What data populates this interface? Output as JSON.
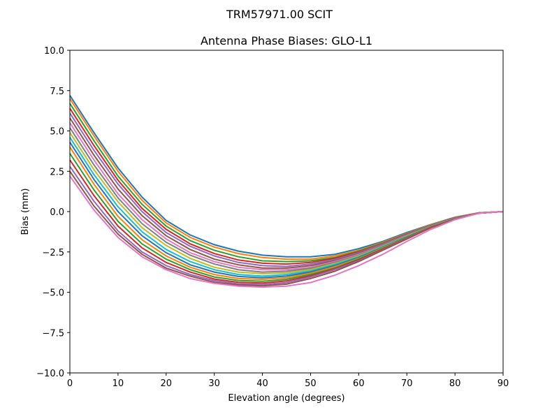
{
  "figure": {
    "suptitle": "TRM57971.00      SCIT"
  },
  "chart_data": {
    "type": "line",
    "title": "Antenna Phase Biases: GLO-L1",
    "xlabel": "Elevation angle (degrees)",
    "ylabel": "Bias (mm)",
    "xlim": [
      0,
      90
    ],
    "ylim": [
      -10,
      10
    ],
    "x": [
      0,
      5,
      10,
      15,
      20,
      25,
      30,
      35,
      40,
      45,
      50,
      55,
      60,
      65,
      70,
      75,
      80,
      85,
      90
    ],
    "x_tick_labels": [
      "0",
      "10",
      "20",
      "30",
      "40",
      "50",
      "60",
      "70",
      "80",
      "90"
    ],
    "y_tick_labels": [
      "10.0",
      "7.5",
      "5.0",
      "2.5",
      "0.0",
      "−2.5",
      "−5.0",
      "−7.5",
      "−10.0"
    ],
    "grid": false,
    "legend": "none",
    "series_note_colors": [
      "#1f77b4",
      "#ff7f0e",
      "#2ca02c",
      "#d62728",
      "#9467bd",
      "#8c564b",
      "#e377c2",
      "#7f7f7f",
      "#bcbd22",
      "#17becf"
    ],
    "series": [
      {
        "values": [
          7.2,
          4.9,
          2.7,
          0.9,
          -0.55,
          -1.45,
          -2.05,
          -2.45,
          -2.7,
          -2.8,
          -2.8,
          -2.65,
          -2.3,
          -1.85,
          -1.3,
          -0.8,
          -0.35,
          -0.08,
          0.0
        ]
      },
      {
        "values": [
          7.0,
          4.7,
          2.5,
          0.7,
          -0.7,
          -1.6,
          -2.2,
          -2.6,
          -2.85,
          -2.95,
          -2.95,
          -2.75,
          -2.4,
          -1.9,
          -1.35,
          -0.82,
          -0.37,
          -0.08,
          0.0
        ]
      },
      {
        "values": [
          6.7,
          4.4,
          2.2,
          0.45,
          -0.9,
          -1.8,
          -2.4,
          -2.8,
          -3.05,
          -3.1,
          -3.05,
          -2.85,
          -2.45,
          -1.95,
          -1.38,
          -0.85,
          -0.38,
          -0.08,
          0.0
        ]
      },
      {
        "values": [
          6.4,
          4.1,
          1.95,
          0.2,
          -1.1,
          -2.0,
          -2.6,
          -3.0,
          -3.2,
          -3.25,
          -3.15,
          -2.9,
          -2.5,
          -1.98,
          -1.4,
          -0.86,
          -0.39,
          -0.08,
          0.0
        ]
      },
      {
        "values": [
          6.1,
          3.8,
          1.7,
          0.0,
          -1.3,
          -2.15,
          -2.75,
          -3.15,
          -3.35,
          -3.4,
          -3.25,
          -2.98,
          -2.55,
          -2.0,
          -1.42,
          -0.87,
          -0.4,
          -0.09,
          0.0
        ]
      },
      {
        "values": [
          5.8,
          3.5,
          1.4,
          -0.25,
          -1.5,
          -2.35,
          -2.95,
          -3.3,
          -3.5,
          -3.5,
          -3.35,
          -3.05,
          -2.6,
          -2.05,
          -1.45,
          -0.88,
          -0.41,
          -0.09,
          0.0
        ]
      },
      {
        "values": [
          5.5,
          3.2,
          1.1,
          -0.5,
          -1.7,
          -2.55,
          -3.1,
          -3.45,
          -3.6,
          -3.6,
          -3.45,
          -3.1,
          -2.65,
          -2.08,
          -1.47,
          -0.89,
          -0.42,
          -0.09,
          0.0
        ]
      },
      {
        "values": [
          5.2,
          2.9,
          0.85,
          -0.75,
          -1.9,
          -2.7,
          -3.25,
          -3.6,
          -3.75,
          -3.7,
          -3.52,
          -3.15,
          -2.7,
          -2.1,
          -1.5,
          -0.9,
          -0.42,
          -0.09,
          0.0
        ]
      },
      {
        "values": [
          4.9,
          2.6,
          0.6,
          -1.0,
          -2.1,
          -2.9,
          -3.45,
          -3.75,
          -3.85,
          -3.8,
          -3.6,
          -3.22,
          -2.75,
          -2.15,
          -1.52,
          -0.92,
          -0.43,
          -0.09,
          0.0
        ]
      },
      {
        "values": [
          4.6,
          2.3,
          0.3,
          -1.25,
          -2.35,
          -3.1,
          -3.6,
          -3.9,
          -4.0,
          -3.9,
          -3.68,
          -3.28,
          -2.8,
          -2.18,
          -1.55,
          -0.93,
          -0.44,
          -0.09,
          0.0
        ]
      },
      {
        "values": [
          4.3,
          2.0,
          0.0,
          -1.5,
          -2.55,
          -3.3,
          -3.75,
          -4.02,
          -4.1,
          -4.0,
          -3.75,
          -3.35,
          -2.85,
          -2.22,
          -1.57,
          -0.94,
          -0.44,
          -0.09,
          0.0
        ]
      },
      {
        "values": [
          4.0,
          1.7,
          -0.3,
          -1.75,
          -2.75,
          -3.45,
          -3.9,
          -4.15,
          -4.2,
          -4.1,
          -3.82,
          -3.42,
          -2.9,
          -2.25,
          -1.6,
          -0.95,
          -0.45,
          -0.1,
          0.0
        ]
      },
      {
        "values": [
          3.6,
          1.35,
          -0.6,
          -2.0,
          -2.95,
          -3.6,
          -4.05,
          -4.27,
          -4.32,
          -4.2,
          -3.9,
          -3.5,
          -2.95,
          -2.3,
          -1.62,
          -0.97,
          -0.45,
          -0.1,
          0.0
        ]
      },
      {
        "values": [
          3.2,
          1.0,
          -0.9,
          -2.25,
          -3.15,
          -3.75,
          -4.18,
          -4.38,
          -4.43,
          -4.3,
          -3.98,
          -3.55,
          -3.0,
          -2.33,
          -1.65,
          -0.98,
          -0.46,
          -0.1,
          0.0
        ]
      },
      {
        "values": [
          2.8,
          0.65,
          -1.2,
          -2.5,
          -3.35,
          -3.9,
          -4.28,
          -4.48,
          -4.52,
          -4.4,
          -4.05,
          -3.6,
          -3.05,
          -2.37,
          -1.67,
          -0.99,
          -0.46,
          -0.1,
          0.0
        ]
      },
      {
        "values": [
          2.5,
          0.35,
          -1.4,
          -2.65,
          -3.5,
          -4.0,
          -4.38,
          -4.55,
          -4.6,
          -4.5,
          -4.15,
          -3.7,
          -3.1,
          -2.4,
          -1.7,
          -1.0,
          -0.47,
          -0.1,
          0.0
        ]
      },
      {
        "values": [
          2.2,
          0.1,
          -1.6,
          -2.8,
          -3.6,
          -4.15,
          -4.45,
          -4.62,
          -4.68,
          -4.62,
          -4.4,
          -3.95,
          -3.35,
          -2.65,
          -1.85,
          -1.1,
          -0.5,
          -0.1,
          0.0
        ]
      }
    ]
  }
}
